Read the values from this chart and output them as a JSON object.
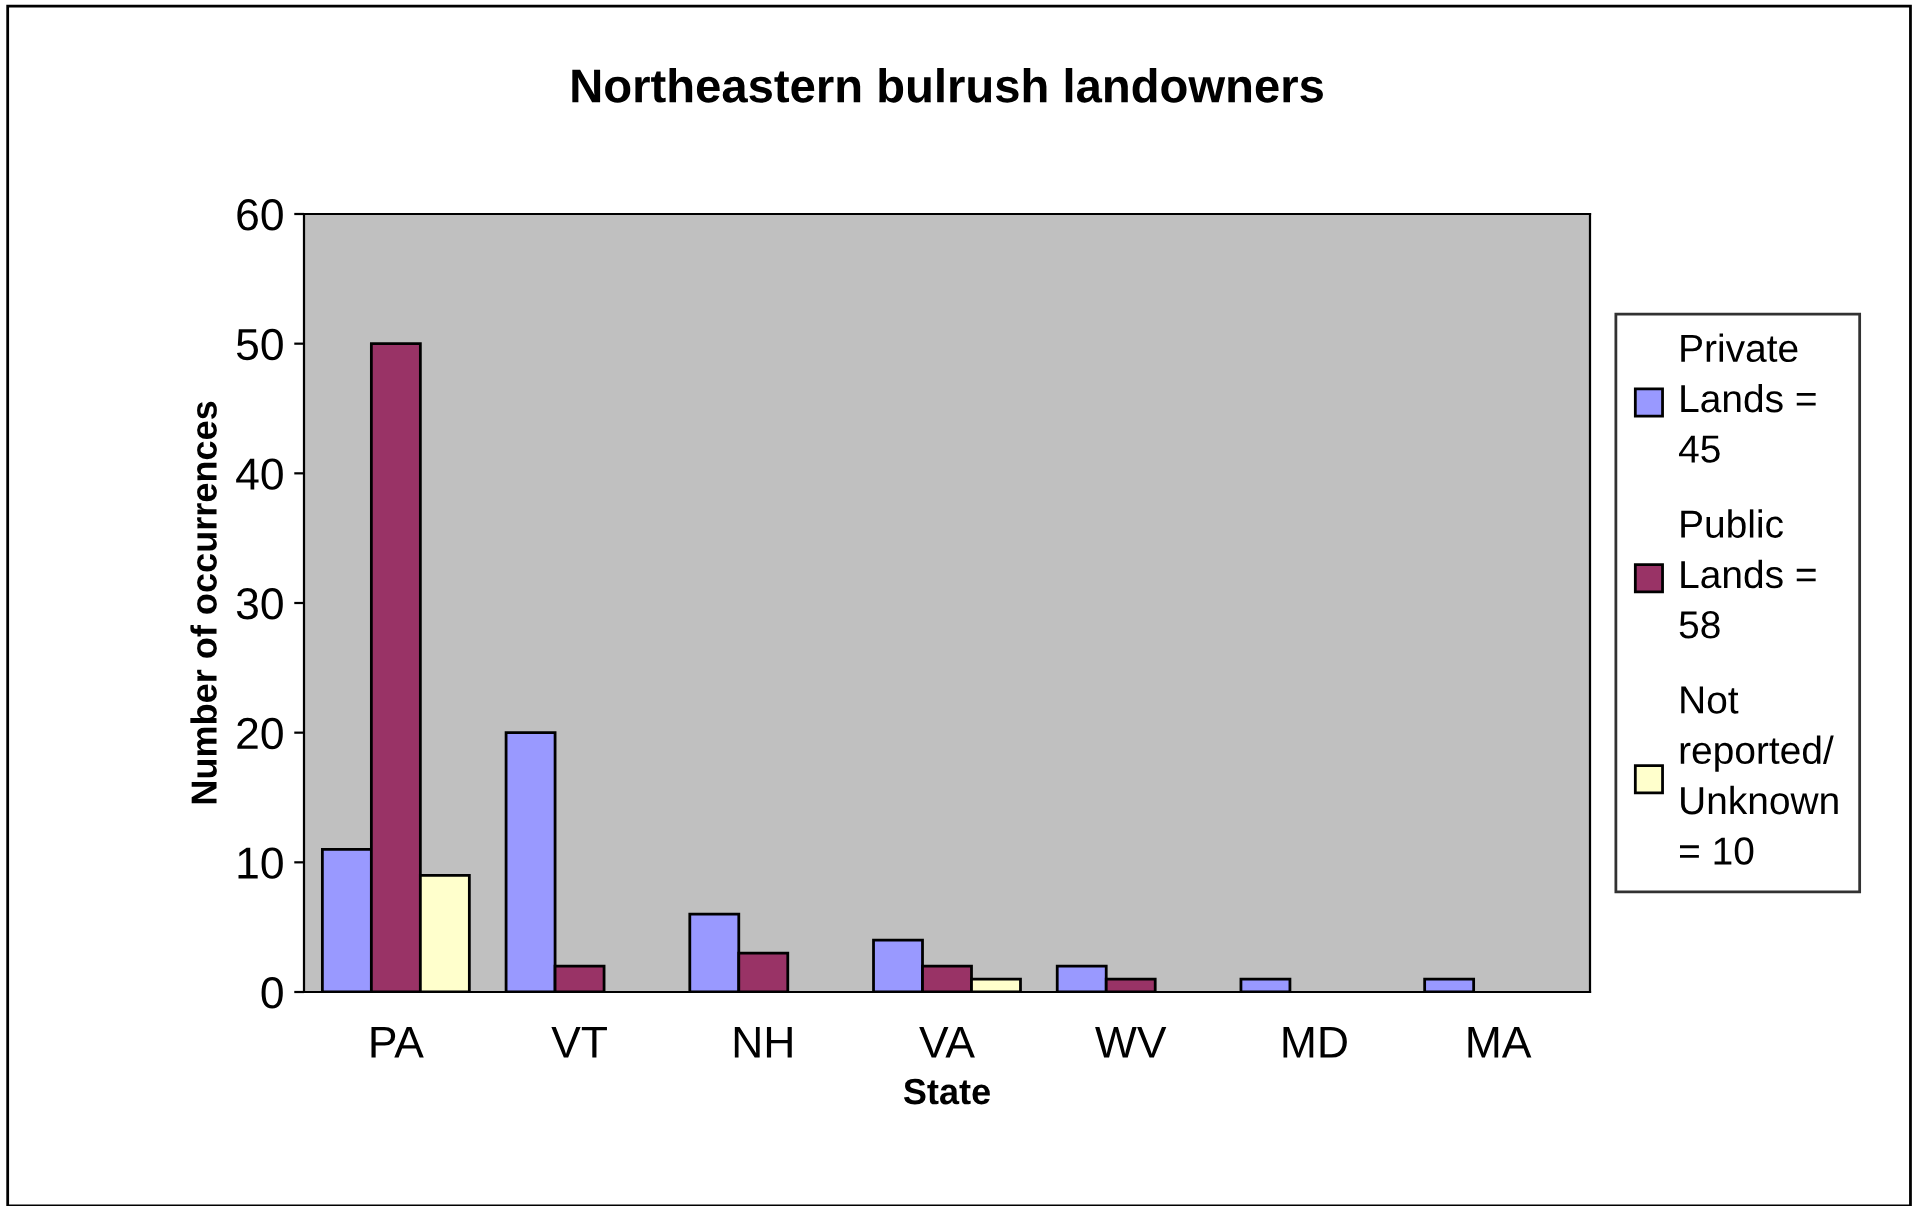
{
  "chart_data": {
    "type": "bar",
    "title": "Northeastern bulrush landowners",
    "xlabel": "State",
    "ylabel": "Number of occurrences",
    "categories": [
      "PA",
      "VT",
      "NH",
      "VA",
      "WV",
      "MD",
      "MA"
    ],
    "series": [
      {
        "name": "Private\nLands =\n45",
        "color": "#9999ff",
        "values": [
          11,
          20,
          6,
          4,
          2,
          1,
          1
        ]
      },
      {
        "name": "Public\nLands =\n58",
        "color": "#993366",
        "values": [
          50,
          2,
          3,
          2,
          1,
          null,
          null
        ]
      },
      {
        "name": "Not\nreported/\nUnknown\n= 10",
        "color": "#ffffcc",
        "values": [
          9,
          null,
          null,
          1,
          null,
          null,
          null
        ]
      }
    ],
    "ylim": [
      0,
      60
    ],
    "yticks": [
      0,
      10,
      20,
      30,
      40,
      50,
      60
    ],
    "grid": false,
    "legend": "right"
  }
}
